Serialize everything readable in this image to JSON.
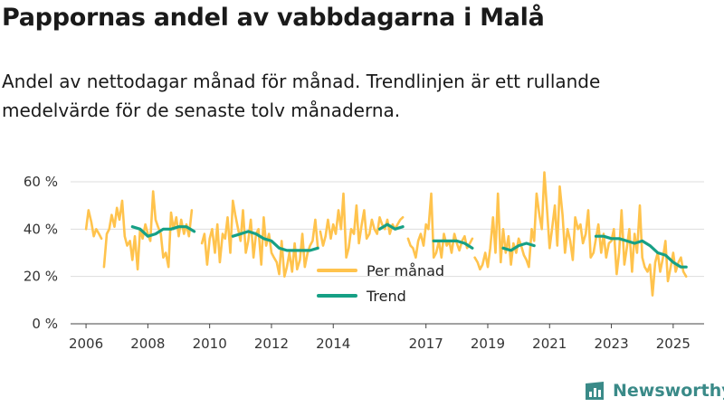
{
  "title": "Pappornas andel av vabbdagarna i Malå",
  "subtitle": "Andel av nettodagar månad för månad. Trendlinjen är ett rullande medelvärde för de senaste tolv månaderna.",
  "brand": {
    "name": "Newsworthy",
    "icon": "bar-chart-logo-icon"
  },
  "colors": {
    "monthly": "#ffc34d",
    "trend": "#16a085",
    "grid": "#dddddd",
    "axis": "#444444",
    "brand": "#3a8a88"
  },
  "chart_data": {
    "type": "line",
    "title": "Pappornas andel av vabbdagarna i Malå",
    "xlabel": "",
    "ylabel": "",
    "xlim": [
      2005.5,
      2026.0
    ],
    "ylim": [
      0,
      60
    ],
    "y_ticks": [
      0,
      20,
      40,
      60
    ],
    "y_tick_labels": [
      "0 %",
      "20 %",
      "40 %",
      "60 %"
    ],
    "x_ticks": [
      2006,
      2008,
      2010,
      2012,
      2014,
      2017,
      2019,
      2021,
      2023,
      2025
    ],
    "x_tick_labels": [
      "2006",
      "2008",
      "2010",
      "2012",
      "2014",
      "2017",
      "2019",
      "2021",
      "2023",
      "2025"
    ],
    "grid": true,
    "legend_position": "bottom-center",
    "series": [
      {
        "name": "Per månad",
        "key": "monthly",
        "segments": [
          {
            "x": [
              2006.0,
              2006.08,
              2006.17,
              2006.25,
              2006.33,
              2006.42,
              2006.5
            ],
            "y": [
              40,
              48,
              43,
              37,
              40,
              38,
              36
            ]
          },
          {
            "x": [
              2006.58,
              2006.67,
              2006.75,
              2006.83,
              2006.92,
              2007.0,
              2007.08,
              2007.17,
              2007.25,
              2007.33,
              2007.42,
              2007.5,
              2007.58,
              2007.67,
              2007.75,
              2007.83,
              2007.92,
              2008.0,
              2008.08,
              2008.17,
              2008.25,
              2008.33,
              2008.42,
              2008.5,
              2008.58,
              2008.67,
              2008.75,
              2008.83,
              2008.92,
              2009.0,
              2009.08,
              2009.17,
              2009.25,
              2009.33,
              2009.42
            ],
            "y": [
              24,
              38,
              40,
              46,
              41,
              49,
              44,
              52,
              37,
              33,
              35,
              27,
              37,
              23,
              40,
              36,
              42,
              38,
              35,
              56,
              44,
              41,
              38,
              28,
              30,
              24,
              47,
              40,
              45,
              37,
              44,
              38,
              42,
              37,
              48
            ]
          },
          {
            "x": [
              2009.75,
              2009.83,
              2009.92,
              2010.0,
              2010.08,
              2010.17,
              2010.25,
              2010.33,
              2010.42,
              2010.5,
              2010.58,
              2010.67,
              2010.75,
              2010.83,
              2010.92,
              2011.0,
              2011.08,
              2011.17,
              2011.25,
              2011.33,
              2011.42,
              2011.5,
              2011.58,
              2011.67,
              2011.75,
              2011.83,
              2011.92,
              2012.0,
              2012.08,
              2012.17,
              2012.25,
              2012.33,
              2012.42,
              2012.5,
              2012.58,
              2012.67,
              2012.75,
              2012.83,
              2012.92,
              2013.0,
              2013.08,
              2013.17,
              2013.25,
              2013.33,
              2013.42,
              2013.5
            ],
            "y": [
              34,
              38,
              25,
              36,
              40,
              30,
              42,
              26,
              38,
              36,
              45,
              30,
              52,
              46,
              40,
              35,
              48,
              30,
              35,
              44,
              28,
              38,
              40,
              25,
              45,
              33,
              38,
              30,
              28,
              26,
              21,
              35,
              20,
              24,
              30,
              22,
              34,
              23,
              27,
              38,
              24,
              30,
              33,
              35,
              44,
              32
            ]
          },
          {
            "x": [
              2013.58,
              2013.67,
              2013.75,
              2013.83,
              2013.92,
              2014.0,
              2014.08,
              2014.17,
              2014.25,
              2014.33,
              2014.42,
              2014.5,
              2014.58,
              2014.67,
              2014.75,
              2014.83,
              2014.92,
              2015.0,
              2015.08,
              2015.17,
              2015.25,
              2015.33,
              2015.42,
              2015.5,
              2015.58,
              2015.67,
              2015.75,
              2015.83,
              2015.92,
              2016.0,
              2016.08,
              2016.17,
              2016.25
            ],
            "y": [
              39,
              33,
              37,
              44,
              36,
              42,
              38,
              48,
              40,
              55,
              28,
              32,
              40,
              38,
              50,
              34,
              42,
              48,
              36,
              38,
              44,
              40,
              38,
              45,
              42,
              40,
              44,
              38,
              42,
              40,
              42,
              44,
              45
            ]
          },
          {
            "x": [
              2016.42,
              2016.5,
              2016.58,
              2016.67,
              2016.75,
              2016.83,
              2016.92,
              2017.0,
              2017.08,
              2017.17,
              2017.25,
              2017.33,
              2017.42,
              2017.5,
              2017.58,
              2017.67,
              2017.75,
              2017.83,
              2017.92,
              2018.0,
              2018.08,
              2018.17,
              2018.25,
              2018.33,
              2018.42,
              2018.5
            ],
            "y": [
              36,
              33,
              32,
              28,
              35,
              38,
              33,
              42,
              40,
              55,
              28,
              30,
              35,
              28,
              38,
              33,
              35,
              30,
              38,
              34,
              31,
              35,
              37,
              32,
              34,
              36
            ]
          },
          {
            "x": [
              2018.58,
              2018.67,
              2018.75,
              2018.83,
              2018.92,
              2019.0,
              2019.08,
              2019.17,
              2019.25,
              2019.33,
              2019.42,
              2019.5,
              2019.58,
              2019.67,
              2019.75,
              2019.83,
              2019.92,
              2020.0,
              2020.08,
              2020.17,
              2020.25,
              2020.33,
              2020.42,
              2020.5,
              2020.58,
              2020.67,
              2020.75,
              2020.83,
              2020.92,
              2021.0,
              2021.08,
              2021.17,
              2021.25,
              2021.33,
              2021.42,
              2021.5,
              2021.58,
              2021.67,
              2021.75,
              2021.83,
              2021.92,
              2022.0,
              2022.08,
              2022.17,
              2022.25,
              2022.33,
              2022.42,
              2022.5,
              2022.58,
              2022.67,
              2022.75,
              2022.83,
              2022.92,
              2023.0,
              2023.08,
              2023.17,
              2023.25,
              2023.33,
              2023.42,
              2023.5,
              2023.58,
              2023.67,
              2023.75,
              2023.83,
              2023.92,
              2024.0,
              2024.08,
              2024.17,
              2024.25,
              2024.33,
              2024.42,
              2024.5,
              2024.58,
              2024.67,
              2024.75,
              2024.83,
              2024.92,
              2025.0,
              2025.08,
              2025.17,
              2025.25,
              2025.33,
              2025.42
            ],
            "y": [
              28,
              26,
              23,
              25,
              30,
              24,
              32,
              45,
              30,
              55,
              26,
              40,
              30,
              37,
              25,
              34,
              30,
              36,
              33,
              29,
              27,
              24,
              40,
              35,
              55,
              46,
              40,
              64,
              48,
              32,
              40,
              50,
              33,
              58,
              46,
              30,
              40,
              35,
              27,
              45,
              40,
              42,
              34,
              38,
              48,
              28,
              30,
              36,
              42,
              30,
              38,
              28,
              34,
              35,
              40,
              21,
              30,
              48,
              25,
              32,
              40,
              22,
              38,
              30,
              50,
              28,
              24,
              22,
              25,
              12,
              26,
              30,
              22,
              28,
              35,
              18,
              24,
              30,
              22,
              26,
              28,
              22,
              20
            ]
          }
        ]
      },
      {
        "name": "Trend",
        "key": "trend",
        "segments": [
          {
            "x": [
              2007.5,
              2007.75,
              2008.0,
              2008.25,
              2008.5,
              2008.75,
              2009.0,
              2009.25,
              2009.5
            ],
            "y": [
              41,
              40,
              37,
              38,
              40,
              40,
              41,
              41,
              39
            ]
          },
          {
            "x": [
              2010.75,
              2011.0,
              2011.25,
              2011.5,
              2011.75,
              2012.0,
              2012.25,
              2012.5,
              2012.75,
              2013.0,
              2013.25,
              2013.5
            ],
            "y": [
              37,
              38,
              39,
              38,
              36,
              35,
              32,
              31,
              31,
              31,
              31,
              32
            ]
          },
          {
            "x": [
              2015.5,
              2015.75,
              2016.0,
              2016.25
            ],
            "y": [
              40,
              42,
              40,
              41
            ]
          },
          {
            "x": [
              2017.25,
              2017.5,
              2017.75,
              2018.0,
              2018.25,
              2018.5
            ],
            "y": [
              35,
              35,
              35,
              35,
              34,
              32
            ]
          },
          {
            "x": [
              2019.5,
              2019.75,
              2020.0,
              2020.25,
              2020.5
            ],
            "y": [
              32,
              31,
              33,
              34,
              33
            ]
          },
          {
            "x": [
              2022.5,
              2022.75,
              2023.0,
              2023.25,
              2023.5,
              2023.75,
              2024.0,
              2024.25,
              2024.5,
              2024.75,
              2025.0,
              2025.25,
              2025.42
            ],
            "y": [
              37,
              37,
              36,
              36,
              35,
              34,
              35,
              33,
              30,
              29,
              26,
              24,
              24
            ]
          }
        ]
      }
    ]
  }
}
